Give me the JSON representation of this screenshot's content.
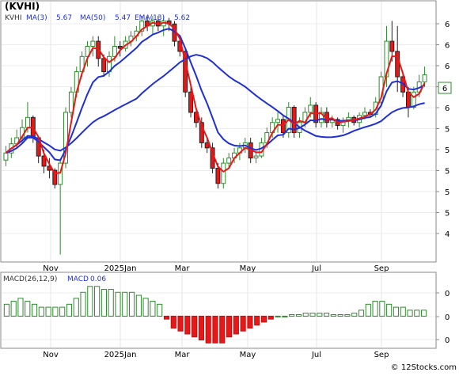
{
  "chart_data": [
    {
      "type": "candlestick",
      "title": "(KVHI)",
      "legend": [
        {
          "name": "KVHI",
          "color": "#333333"
        },
        {
          "name": "MA(3)",
          "value": "5.67",
          "color": "#1f2fd6"
        },
        {
          "name": "MA(50)",
          "value": "5.47",
          "color": "#1f2fd6"
        },
        {
          "name": "EMA(13)",
          "value": "5.62",
          "color": "#1f2fd6"
        }
      ],
      "x_labels": [
        "Nov",
        "2025Jan",
        "Mar",
        "May",
        "Jul",
        "Sep"
      ],
      "y_labels": [
        "6",
        "6",
        "6",
        "6",
        "6",
        "5",
        "5",
        "5",
        "5",
        "5",
        "4"
      ],
      "last_price_label": "6",
      "ylim": [
        3.9,
        6.3
      ],
      "up_color": "#2e8b2e",
      "down_color": "#e81818",
      "ohlc": [
        [
          4.88,
          5.02,
          4.82,
          4.95
        ],
        [
          4.95,
          5.1,
          4.9,
          5.04
        ],
        [
          5.04,
          5.18,
          5.0,
          5.1
        ],
        [
          5.1,
          5.28,
          5.05,
          5.2
        ],
        [
          5.2,
          5.45,
          5.15,
          5.3
        ],
        [
          5.3,
          5.32,
          5.05,
          5.1
        ],
        [
          5.1,
          5.12,
          4.85,
          4.92
        ],
        [
          4.92,
          4.98,
          4.75,
          4.82
        ],
        [
          4.82,
          4.9,
          4.7,
          4.78
        ],
        [
          4.78,
          4.8,
          4.6,
          4.64
        ],
        [
          4.64,
          4.9,
          3.95,
          4.85
        ],
        [
          4.85,
          5.4,
          4.8,
          5.35
        ],
        [
          5.35,
          5.6,
          5.3,
          5.55
        ],
        [
          5.55,
          5.8,
          5.5,
          5.75
        ],
        [
          5.75,
          5.95,
          5.7,
          5.9
        ],
        [
          5.9,
          6.05,
          5.8,
          6.0
        ],
        [
          6.0,
          6.1,
          5.9,
          6.05
        ],
        [
          6.05,
          6.1,
          5.8,
          5.88
        ],
        [
          5.88,
          5.92,
          5.7,
          5.75
        ],
        [
          5.75,
          5.95,
          5.7,
          5.9
        ],
        [
          5.9,
          6.1,
          5.85,
          6.0
        ],
        [
          6.0,
          6.05,
          5.9,
          5.98
        ],
        [
          5.98,
          6.1,
          5.95,
          6.05
        ],
        [
          6.05,
          6.15,
          6.0,
          6.1
        ],
        [
          6.1,
          6.2,
          6.05,
          6.15
        ],
        [
          6.15,
          6.3,
          6.1,
          6.25
        ],
        [
          6.25,
          6.3,
          6.15,
          6.2
        ],
        [
          6.2,
          6.3,
          6.12,
          6.25
        ],
        [
          6.25,
          6.3,
          6.15,
          6.2
        ],
        [
          6.2,
          6.3,
          6.1,
          6.25
        ],
        [
          6.25,
          6.28,
          6.15,
          6.22
        ],
        [
          6.22,
          6.25,
          6.0,
          6.05
        ],
        [
          6.05,
          6.1,
          5.9,
          5.95
        ],
        [
          5.95,
          5.98,
          5.5,
          5.55
        ],
        [
          5.55,
          5.6,
          5.3,
          5.35
        ],
        [
          5.35,
          5.4,
          5.2,
          5.25
        ],
        [
          5.25,
          5.3,
          5.0,
          5.05
        ],
        [
          5.05,
          5.1,
          4.95,
          5.0
        ],
        [
          5.0,
          5.05,
          4.75,
          4.8
        ],
        [
          4.8,
          4.85,
          4.6,
          4.65
        ],
        [
          4.65,
          4.9,
          4.6,
          4.85
        ],
        [
          4.85,
          4.95,
          4.8,
          4.9
        ],
        [
          4.9,
          5.0,
          4.85,
          4.95
        ],
        [
          4.95,
          5.05,
          4.88,
          5.0
        ],
        [
          5.0,
          5.1,
          4.95,
          5.05
        ],
        [
          5.05,
          5.1,
          4.85,
          4.9
        ],
        [
          4.9,
          4.95,
          4.85,
          4.92
        ],
        [
          4.92,
          5.1,
          4.9,
          5.05
        ],
        [
          5.05,
          5.2,
          5.0,
          5.15
        ],
        [
          5.15,
          5.3,
          5.1,
          5.25
        ],
        [
          5.25,
          5.35,
          5.15,
          5.28
        ],
        [
          5.28,
          5.32,
          5.1,
          5.15
        ],
        [
          5.15,
          5.45,
          5.1,
          5.4
        ],
        [
          5.4,
          5.42,
          5.1,
          5.15
        ],
        [
          5.15,
          5.3,
          5.1,
          5.25
        ],
        [
          5.25,
          5.4,
          5.2,
          5.35
        ],
        [
          5.35,
          5.5,
          5.3,
          5.42
        ],
        [
          5.42,
          5.45,
          5.2,
          5.25
        ],
        [
          5.25,
          5.4,
          5.2,
          5.35
        ],
        [
          5.35,
          5.4,
          5.2,
          5.25
        ],
        [
          5.25,
          5.32,
          5.2,
          5.28
        ],
        [
          5.28,
          5.3,
          5.18,
          5.22
        ],
        [
          5.22,
          5.3,
          5.15,
          5.27
        ],
        [
          5.27,
          5.35,
          5.2,
          5.3
        ],
        [
          5.3,
          5.32,
          5.22,
          5.25
        ],
        [
          5.25,
          5.35,
          5.2,
          5.32
        ],
        [
          5.32,
          5.4,
          5.28,
          5.35
        ],
        [
          5.35,
          5.38,
          5.3,
          5.33
        ],
        [
          5.33,
          5.5,
          5.3,
          5.45
        ],
        [
          5.45,
          5.75,
          5.4,
          5.7
        ],
        [
          5.7,
          6.2,
          5.6,
          6.05
        ],
        [
          6.05,
          6.25,
          5.85,
          5.95
        ],
        [
          5.95,
          6.2,
          5.55,
          5.7
        ],
        [
          5.7,
          5.75,
          5.5,
          5.55
        ],
        [
          5.55,
          5.6,
          5.3,
          5.4
        ],
        [
          5.4,
          5.6,
          5.38,
          5.55
        ],
        [
          5.55,
          5.72,
          5.5,
          5.65
        ],
        [
          5.65,
          5.8,
          5.6,
          5.72
        ]
      ]
    },
    {
      "type": "bar",
      "title": "MACD(26,12,9)",
      "legend": [
        {
          "name": "MACD(26,12,9)",
          "color": "#333333"
        },
        {
          "name": "MACD",
          "value": "0.06",
          "color": "#1f2fd6"
        }
      ],
      "x_labels": [
        "Nov",
        "2025Jan",
        "Mar",
        "May",
        "Jul",
        "Sep"
      ],
      "y_labels": [
        "0",
        "0",
        "0"
      ],
      "ylim": [
        -0.1,
        0.11
      ],
      "values": [
        0.04,
        0.05,
        0.06,
        0.05,
        0.04,
        0.03,
        0.03,
        0.03,
        0.03,
        0.04,
        0.06,
        0.08,
        0.1,
        0.1,
        0.09,
        0.09,
        0.08,
        0.08,
        0.08,
        0.07,
        0.06,
        0.05,
        0.04,
        -0.01,
        -0.04,
        -0.05,
        -0.06,
        -0.07,
        -0.08,
        -0.09,
        -0.09,
        -0.09,
        -0.07,
        -0.06,
        -0.05,
        -0.04,
        -0.03,
        -0.02,
        -0.01,
        0.0,
        0.0,
        0.005,
        0.005,
        0.01,
        0.01,
        0.01,
        0.01,
        0.005,
        0.005,
        0.005,
        0.01,
        0.02,
        0.04,
        0.05,
        0.05,
        0.04,
        0.03,
        0.03,
        0.02,
        0.02,
        0.02
      ]
    }
  ],
  "watermark": "© 12Stocks.com"
}
